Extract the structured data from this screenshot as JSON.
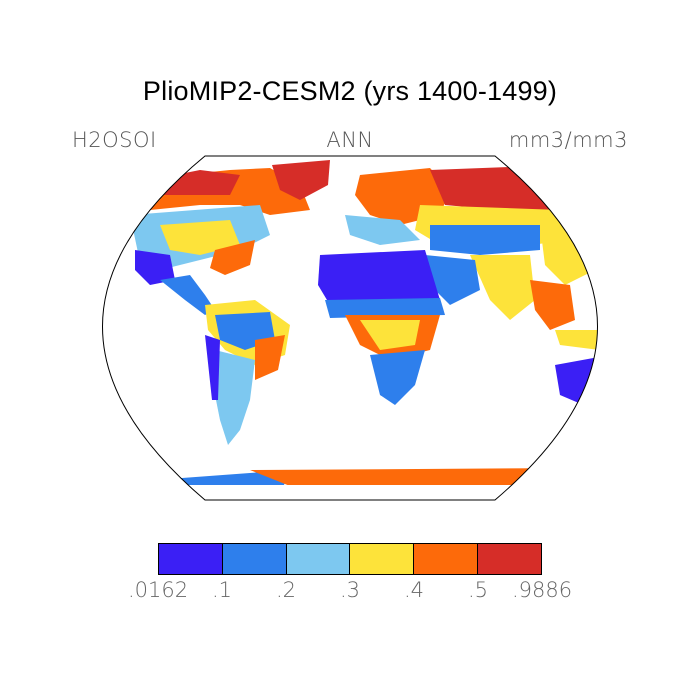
{
  "title": "PlioMIP2-CESM2 (yrs 1400-1499)",
  "variable": "H2OSOI",
  "season": "ANN",
  "units": "mm3/mm3",
  "colorbar": {
    "colors": [
      "#3b1ff5",
      "#2e7fec",
      "#7dc8f0",
      "#fde33a",
      "#fd6a0a",
      "#d62d28"
    ],
    "labels": [
      ".0162",
      ".1",
      ".2",
      ".3",
      ".4",
      ".5",
      ".9886"
    ]
  },
  "map": {
    "projection": "robinson",
    "ocean_color": "#ffffff",
    "outline_color": "#000000"
  }
}
